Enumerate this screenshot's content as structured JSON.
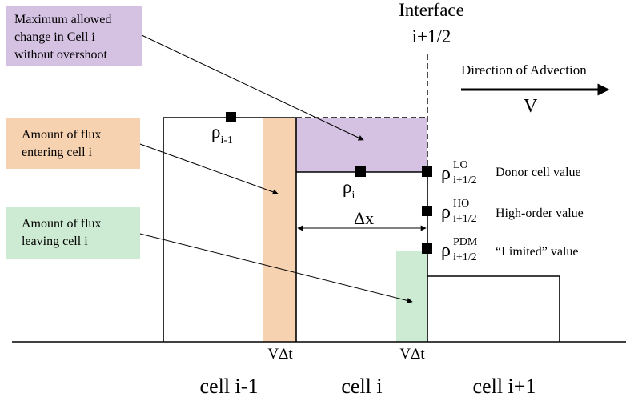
{
  "colors": {
    "purple": "#d5c1e2",
    "orange": "#f6d2b0",
    "green": "#cdebd2",
    "line": "#000000"
  },
  "labels": {
    "interface_title": "Interface",
    "interface_index": "i+1/2",
    "direction_title": "Direction of Advection",
    "velocity_symbol": "V",
    "purple_box": [
      "Maximum allowed",
      "change in Cell i",
      "without overshoot"
    ],
    "orange_box": [
      "Amount of flux",
      "entering cell i"
    ],
    "green_box": [
      "Amount of flux",
      "leaving cell i"
    ],
    "rho_im1": {
      "base": "ρ",
      "sub": "i-1"
    },
    "rho_i": {
      "base": "ρ",
      "sub": "i"
    },
    "rho_lo": {
      "base": "ρ",
      "sup": "LO",
      "sub": "i+1/2",
      "desc": "Donor cell value"
    },
    "rho_ho": {
      "base": "ρ",
      "sup": "HO",
      "sub": "i+1/2",
      "desc": "High-order value"
    },
    "rho_pdm": {
      "base": "ρ",
      "sup": "PDM",
      "sub": "i+1/2",
      "desc": "“Limited” value"
    },
    "dx": "Δx",
    "vdt_left": "VΔt",
    "vdt_right": "VΔt",
    "cell_left": "cell i-1",
    "cell_mid": "cell i",
    "cell_right": "cell i+1"
  }
}
